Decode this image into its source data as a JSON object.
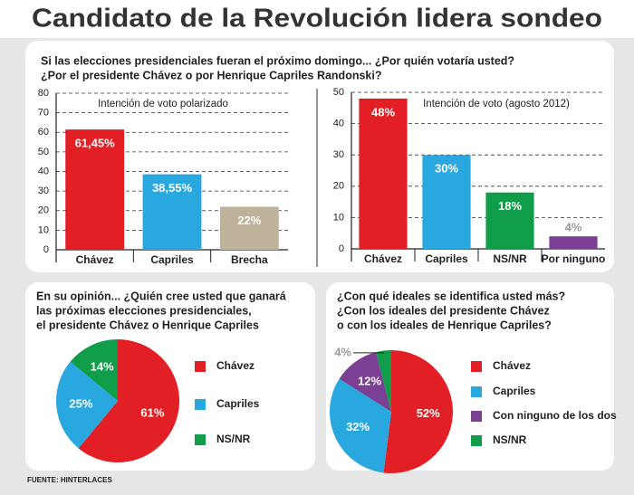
{
  "title": "Candidato de la Revolución lidera sondeo",
  "question": [
    "Si las elecciones presidenciales fueran el próximo domingo... ¿Por quién votaría usted?",
    "¿Por el presidente Chávez o por Henrique Capriles Randonski?"
  ],
  "source": "FUENTE: HINTERLACES",
  "chart_data": [
    {
      "type": "bar",
      "title": "Intención de voto polarizado",
      "categories": [
        "Chávez",
        "Capriles",
        "Brecha"
      ],
      "values": [
        61.45,
        38.55,
        22
      ],
      "value_labels": [
        "61,45%",
        "38,55%",
        "22%"
      ],
      "colors": [
        "#e31f26",
        "#29a8e0",
        "#bfb29b"
      ],
      "ylim": [
        0,
        80
      ],
      "yticks": [
        0,
        10,
        20,
        30,
        40,
        50,
        60,
        70,
        80
      ],
      "grid": true
    },
    {
      "type": "bar",
      "title": "Intención de voto (agosto 2012)",
      "categories": [
        "Chávez",
        "Capriles",
        "NS/NR",
        "Por ninguno"
      ],
      "values": [
        48,
        30,
        18,
        4
      ],
      "value_labels": [
        "48%",
        "30%",
        "18%",
        "4%"
      ],
      "colors": [
        "#e31f26",
        "#29a8e0",
        "#0f9d4a",
        "#7b3f94"
      ],
      "ylim": [
        0,
        50
      ],
      "yticks": [
        0,
        10,
        20,
        30,
        40,
        50
      ],
      "grid": true
    },
    {
      "type": "pie",
      "title": [
        "En su opinión... ¿Quién cree usted que ganará",
        "las próximas elecciones presidenciales,",
        "el presidente Chávez o Henrique Capriles"
      ],
      "categories": [
        "Chávez",
        "Capriles",
        "NS/NR"
      ],
      "values": [
        61,
        25,
        14
      ],
      "value_labels": [
        "61%",
        "25%",
        "14%"
      ],
      "colors": [
        "#e31f26",
        "#29a8e0",
        "#0f9d4a"
      ]
    },
    {
      "type": "pie",
      "title": [
        "¿Con qué ideales se identifica usted más?",
        "¿Con los ideales del presidente Chávez",
        "o con los ideales de Henrique Capriles?"
      ],
      "categories": [
        "Chávez",
        "Capriles",
        "Con ninguno de los dos",
        "NS/NR"
      ],
      "values": [
        52,
        32,
        12,
        4
      ],
      "value_labels": [
        "52%",
        "32%",
        "12%",
        "4%"
      ],
      "colors": [
        "#e31f26",
        "#29a8e0",
        "#7b3f94",
        "#0f9d4a"
      ]
    }
  ]
}
